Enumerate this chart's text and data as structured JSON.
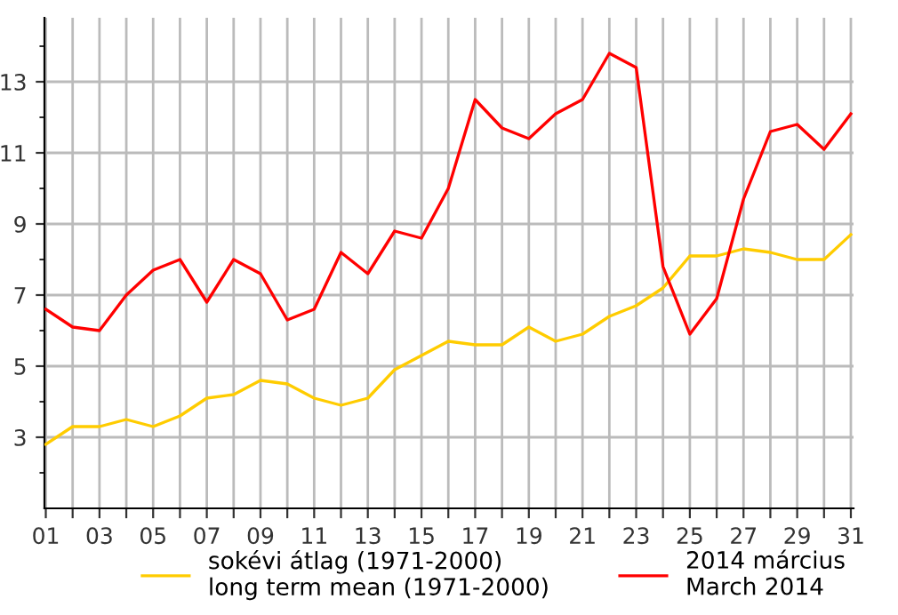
{
  "chart_data": {
    "type": "line",
    "categories": [
      "01",
      null,
      "03",
      null,
      "05",
      null,
      "07",
      null,
      "09",
      null,
      "11",
      null,
      "13",
      null,
      "15",
      null,
      "17",
      null,
      "19",
      null,
      "21",
      null,
      "23",
      null,
      "25",
      null,
      "27",
      null,
      "29",
      null,
      "31"
    ],
    "series": [
      {
        "name": "sokévi átlag (1971-2000)\nlong term mean (1971-2000)",
        "color": "#ffcc00",
        "values": [
          2.8,
          3.3,
          3.3,
          3.5,
          3.3,
          3.6,
          4.1,
          4.2,
          4.6,
          4.5,
          4.1,
          3.9,
          4.1,
          4.9,
          5.3,
          5.7,
          5.6,
          5.6,
          6.1,
          5.7,
          5.9,
          6.4,
          6.7,
          7.2,
          8.1,
          8.1,
          8.3,
          8.2,
          8.0,
          8.0,
          8.7
        ]
      },
      {
        "name": "2014 március\nMarch 2014",
        "color": "#ff0000",
        "values": [
          6.6,
          6.1,
          6.0,
          7.0,
          7.7,
          8.0,
          6.8,
          8.0,
          7.6,
          6.3,
          6.6,
          8.2,
          7.6,
          8.8,
          8.6,
          10.0,
          12.5,
          11.7,
          11.4,
          12.1,
          12.5,
          13.8,
          13.4,
          7.8,
          5.9,
          6.9,
          9.7,
          11.6,
          11.8,
          11.1,
          12.1
        ]
      }
    ],
    "ylim": [
      1,
      14.8
    ],
    "yticks": [
      {
        "value": 2,
        "label": null
      },
      3,
      {
        "value": 4,
        "label": null
      },
      5,
      {
        "value": 6,
        "label": null
      },
      7,
      {
        "value": 8,
        "label": null
      },
      9,
      {
        "value": 10,
        "label": null
      },
      11,
      {
        "value": 12,
        "label": null
      },
      13,
      {
        "value": 14,
        "label": null
      }
    ],
    "grid": true,
    "legend": "bottom",
    "marker": "none",
    "line_style": "solid"
  }
}
